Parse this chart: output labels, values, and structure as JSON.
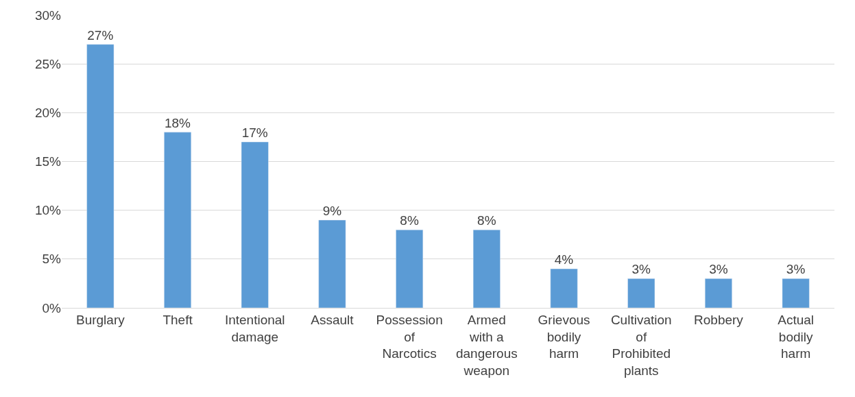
{
  "chart_data": {
    "type": "bar",
    "categories": [
      "Burglary",
      "Theft",
      "Intentional damage",
      "Assault",
      "Possession of Narcotics",
      "Armed with a dangerous weapon",
      "Grievous bodily harm",
      "Cultivation of Prohibited plants",
      "Robbery",
      "Actual bodily harm"
    ],
    "values": [
      27,
      18,
      17,
      9,
      8,
      8,
      4,
      3,
      3,
      3
    ],
    "value_labels": [
      "27%",
      "18%",
      "17%",
      "9%",
      "8%",
      "8%",
      "4%",
      "3%",
      "3%",
      "3%"
    ],
    "color": "#5b9bd5",
    "ylim": [
      0,
      30
    ],
    "yticks": [
      {
        "value": 0,
        "label": "0%"
      },
      {
        "value": 5,
        "label": "5%"
      },
      {
        "value": 10,
        "label": "10%"
      },
      {
        "value": 15,
        "label": "15%"
      },
      {
        "value": 20,
        "label": "20%"
      },
      {
        "value": 25,
        "label": "25%"
      },
      {
        "value": 30,
        "label": "30%"
      }
    ],
    "grid": "y"
  }
}
